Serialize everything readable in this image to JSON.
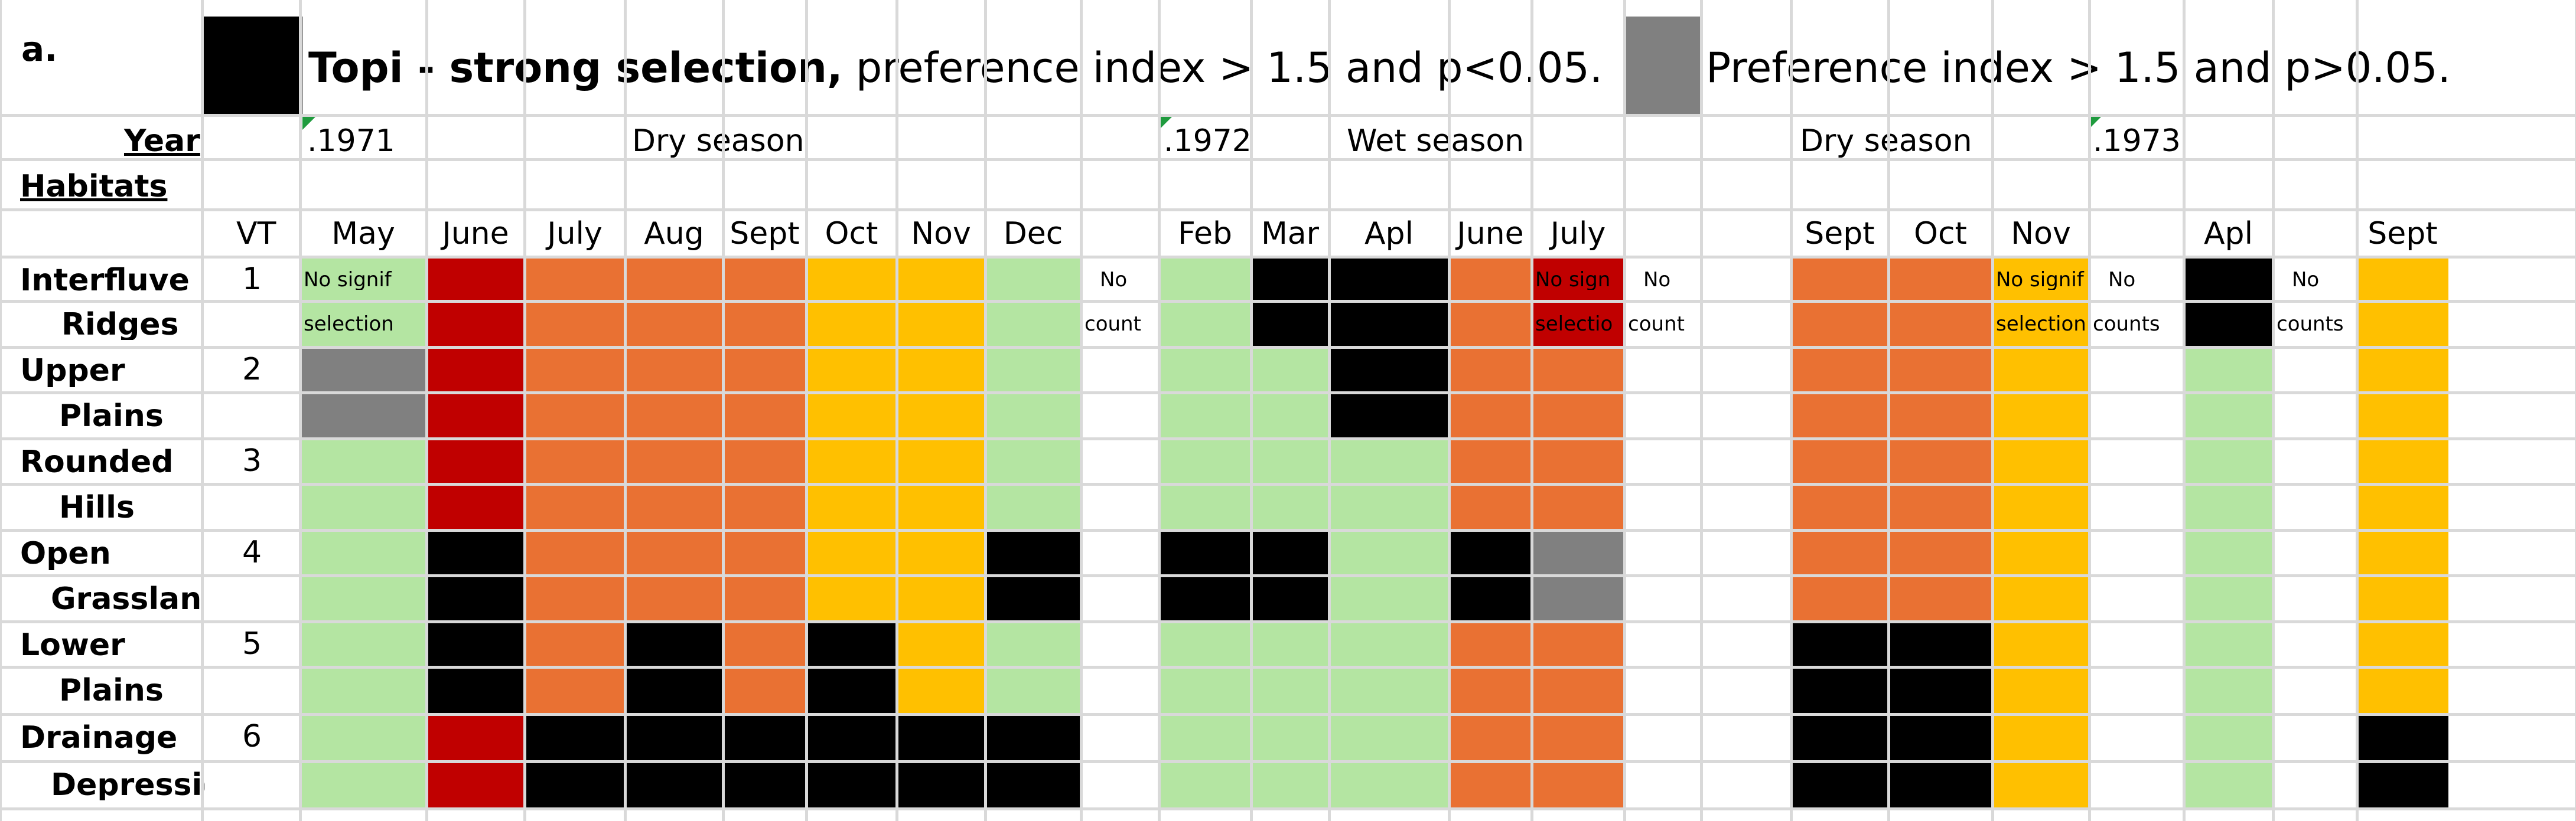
{
  "colors": {
    "strong": "#000000",
    "weak": "#808080",
    "red": "#c00000",
    "orange": "#e97133",
    "yellow": "#ffc000",
    "green": "#b4e5a2",
    "grid": "#d9d9d9",
    "marker": "#1f9b3e"
  },
  "title": {
    "panel": "a.",
    "strong_bold": "Topi - strong selection,",
    "strong_rest": " preference index > 1.5 and p<0.05.",
    "weak": "Preference index > 1.5 and p>0.05."
  },
  "header": {
    "year_label": "Year",
    "habitats_label": "Habitats",
    "vt_label": "VT",
    "years": [
      ".1971",
      ".1972",
      ".1973"
    ],
    "seasons": [
      "Dry season",
      "Wet season",
      "Dry season"
    ],
    "months": [
      "May",
      "June",
      "July",
      "Aug",
      "Sept",
      "Oct",
      "Nov",
      "Dec",
      "",
      "Feb",
      "Mar",
      "Apl",
      "June",
      "July",
      "",
      "",
      "Sept",
      "Oct",
      "Nov",
      "",
      "Apl",
      "",
      "Sept"
    ]
  },
  "habitats": [
    {
      "vt": "1",
      "line1": "Interfluve",
      "line2": "Ridges"
    },
    {
      "vt": "2",
      "line1": "Upper",
      "line2": "Plains"
    },
    {
      "vt": "3",
      "line1": "Rounded",
      "line2": "Hills"
    },
    {
      "vt": "4",
      "line1": "Open",
      "line2": "Grasslands"
    },
    {
      "vt": "5",
      "line1": "Lower",
      "line2": "Plains"
    },
    {
      "vt": "6",
      "line1": "Drainage",
      "line2": "Depressions"
    }
  ],
  "grid": {
    "codes": {
      "K": "strong",
      "G": "weak",
      "R": "red",
      "O": "orange",
      "Y": "yellow",
      "L": "green",
      "W": "none"
    },
    "rows": [
      "LROOOYYLWLKKORWWOOYWKWY",
      "LROOOYYLWLKKORWWOOYWKWY",
      "GROOOYYLWLLKOOWWOOYWLWY",
      "GROOOYYLWLLKOOWWOOYWLWY",
      "LROOOYYLWLLLOOWWOOYWLWY",
      "LROOOYYLWLLLOOWWOOYWLWY",
      "LKOOOYYKWKKLKGWWOOYWLWY",
      "LKOOOYYKWKKLKGWWOOYWLWY",
      "LKOKOKYLWLLLOOWWKKYWLWY",
      "LKOKOKYLWLLLOOWWKKYWLWY",
      "LRKKKKKKWLLLOOWWKKYWLWK",
      "LRKKKKKKWLLLOOWWKKYWLWK"
    ]
  },
  "notes": [
    {
      "col": 0,
      "row": 0,
      "text": "No signif"
    },
    {
      "col": 0,
      "row": 1,
      "text": "selection"
    },
    {
      "col": 8,
      "row": 0,
      "text": "No"
    },
    {
      "col": 8,
      "row": 1,
      "text": "count"
    },
    {
      "col": 13,
      "row": 0,
      "text": "No sign"
    },
    {
      "col": 13,
      "row": 1,
      "text": "selectio"
    },
    {
      "col": 14,
      "row": 0,
      "text": "No"
    },
    {
      "col": 14,
      "row": 1,
      "text": "count"
    },
    {
      "col": 18,
      "row": 0,
      "text": "No signif"
    },
    {
      "col": 18,
      "row": 1,
      "text": "selection"
    },
    {
      "col": 19,
      "row": 0,
      "text": "No"
    },
    {
      "col": 19,
      "row": 1,
      "text": "counts"
    },
    {
      "col": 21,
      "row": 0,
      "text": "No"
    },
    {
      "col": 21,
      "row": 1,
      "text": "counts"
    }
  ]
}
